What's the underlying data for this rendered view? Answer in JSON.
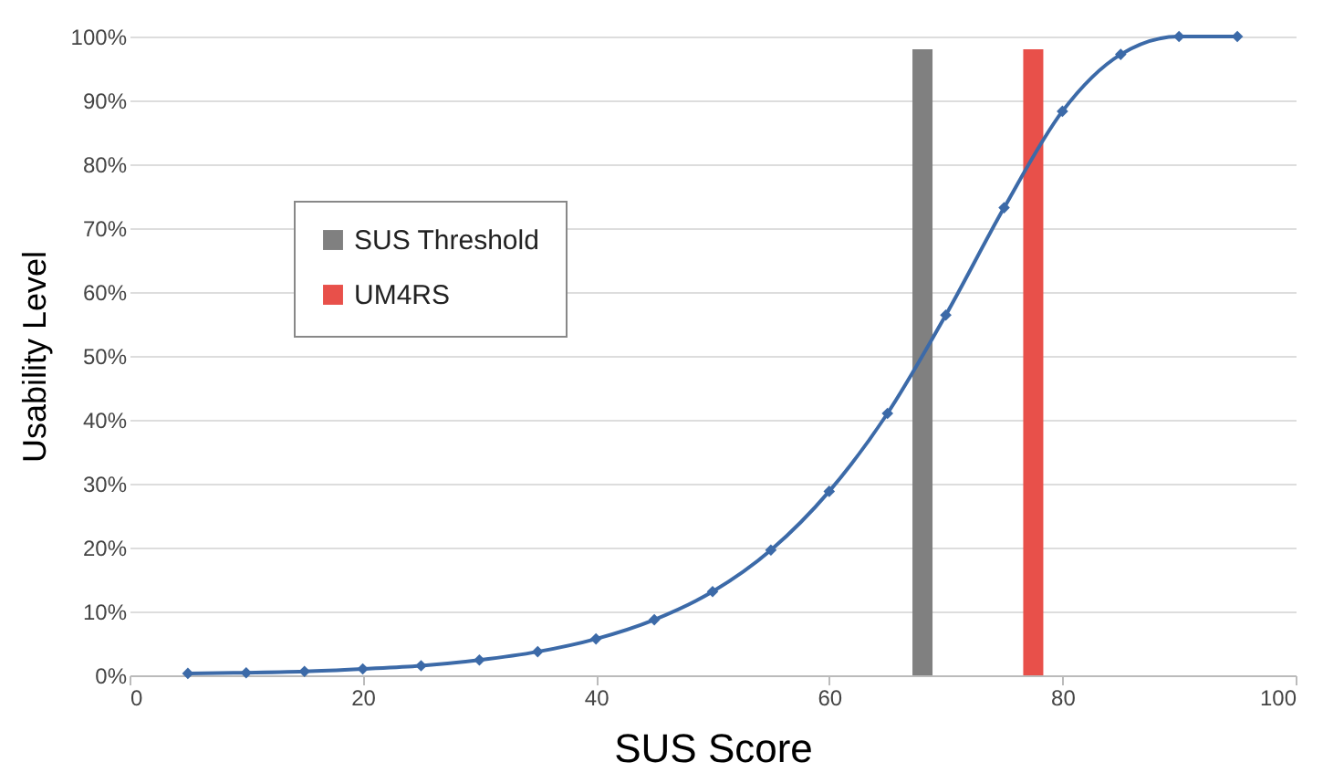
{
  "chart_data": {
    "type": "line",
    "xlabel": "SUS Score",
    "ylabel": "Usability Level",
    "xlim": [
      0,
      100
    ],
    "xticks": [
      0,
      20,
      40,
      60,
      80,
      100
    ],
    "ylim": [
      0,
      100
    ],
    "yticks": [
      {
        "value": 0,
        "label": "0%"
      },
      {
        "value": 10,
        "label": "10%"
      },
      {
        "value": 20,
        "label": "20%"
      },
      {
        "value": 30,
        "label": "30%"
      },
      {
        "value": 40,
        "label": "40%"
      },
      {
        "value": 50,
        "label": "50%"
      },
      {
        "value": 60,
        "label": "60%"
      },
      {
        "value": 70,
        "label": "70%"
      },
      {
        "value": 80,
        "label": "80%"
      },
      {
        "value": 90,
        "label": "90%"
      },
      {
        "value": 100,
        "label": "100%"
      }
    ],
    "grid": "y",
    "legend": "top left",
    "marker": "diamond",
    "line_style": "solid",
    "series": [
      {
        "color": "#3c6aa8",
        "x": [
          5,
          10,
          15,
          20,
          25,
          30,
          35,
          40,
          45,
          50,
          55,
          60,
          65,
          70,
          75,
          80,
          85,
          90,
          95
        ],
        "values": [
          0.3,
          0.4,
          0.6,
          1,
          1.5,
          2.4,
          3.7,
          5.7,
          8.7,
          13.1,
          19.6,
          28.8,
          41,
          56.4,
          73.2,
          88.3,
          97.2,
          100,
          100
        ]
      },
      {
        "type": "bar",
        "name": "SUS Threshold",
        "color": "#808080",
        "x": [
          68
        ],
        "values": [
          98
        ]
      },
      {
        "type": "bar",
        "name": "UM4RS",
        "color": "#e8504a",
        "x": [
          77.5
        ],
        "values": [
          98
        ]
      }
    ]
  }
}
